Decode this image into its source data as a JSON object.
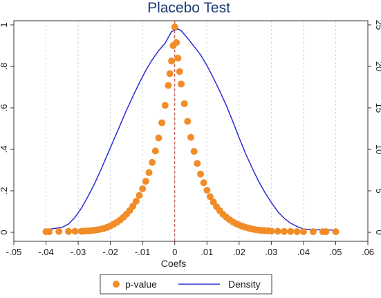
{
  "chart_data": {
    "type": "scatter",
    "title": "Placebo Test",
    "xlabel": "Coefs",
    "xlim": [
      -0.05,
      0.06
    ],
    "x_ticks": [
      -0.05,
      -0.04,
      -0.03,
      -0.02,
      -0.01,
      0,
      0.01,
      0.02,
      0.03,
      0.04,
      0.05,
      0.06
    ],
    "x_tick_labels": [
      "-.05",
      "-.04",
      "-.03",
      "-.02",
      "-.01",
      "0",
      ".01",
      ".02",
      ".03",
      ".04",
      ".05",
      ".06"
    ],
    "y_left": {
      "lim": [
        0,
        1
      ],
      "ticks": [
        0,
        0.2,
        0.4,
        0.6,
        0.8,
        1.0
      ],
      "tick_labels": [
        "0",
        ".2",
        ".4",
        ".6",
        ".8",
        "1"
      ]
    },
    "y_right": {
      "lim": [
        0,
        25
      ],
      "ticks": [
        0,
        5,
        10,
        15,
        20,
        25
      ],
      "tick_labels": [
        "0",
        "5",
        "10",
        "15",
        "20",
        "25"
      ]
    },
    "reference_line": {
      "x": 0,
      "color": "#c0392b",
      "style": "dashed"
    },
    "grid": "vertical dashed",
    "legend": {
      "position": "bottom"
    },
    "series": [
      {
        "name": "p-value",
        "kind": "markers",
        "axis": "left",
        "color": "#f28c28",
        "points": [
          [
            -0.04,
            0.003
          ],
          [
            -0.039,
            0.003
          ],
          [
            -0.036,
            0.004
          ],
          [
            -0.033,
            0.004
          ],
          [
            -0.031,
            0.005
          ],
          [
            -0.029,
            0.005
          ],
          [
            -0.028,
            0.006
          ],
          [
            -0.027,
            0.007
          ],
          [
            -0.026,
            0.008
          ],
          [
            -0.025,
            0.01
          ],
          [
            -0.024,
            0.012
          ],
          [
            -0.023,
            0.015
          ],
          [
            -0.022,
            0.019
          ],
          [
            -0.021,
            0.024
          ],
          [
            -0.02,
            0.031
          ],
          [
            -0.019,
            0.039
          ],
          [
            -0.018,
            0.048
          ],
          [
            -0.017,
            0.059
          ],
          [
            -0.016,
            0.072
          ],
          [
            -0.015,
            0.087
          ],
          [
            -0.014,
            0.105
          ],
          [
            -0.013,
            0.126
          ],
          [
            -0.012,
            0.15
          ],
          [
            -0.011,
            0.178
          ],
          [
            -0.01,
            0.21
          ],
          [
            -0.009,
            0.246
          ],
          [
            -0.008,
            0.288
          ],
          [
            -0.007,
            0.337
          ],
          [
            -0.006,
            0.392
          ],
          [
            -0.005,
            0.455
          ],
          [
            -0.004,
            0.528
          ],
          [
            -0.003,
            0.612
          ],
          [
            -0.002,
            0.708
          ],
          [
            -0.0015,
            0.765
          ],
          [
            -0.001,
            0.826
          ],
          [
            -0.0005,
            0.9
          ],
          [
            0.0,
            0.99
          ],
          [
            0.0005,
            0.915
          ],
          [
            0.001,
            0.84
          ],
          [
            0.0015,
            0.775
          ],
          [
            0.002,
            0.715
          ],
          [
            0.003,
            0.62
          ],
          [
            0.004,
            0.535
          ],
          [
            0.005,
            0.458
          ],
          [
            0.006,
            0.39
          ],
          [
            0.007,
            0.332
          ],
          [
            0.008,
            0.281
          ],
          [
            0.009,
            0.239
          ],
          [
            0.01,
            0.203
          ],
          [
            0.011,
            0.172
          ],
          [
            0.012,
            0.146
          ],
          [
            0.013,
            0.123
          ],
          [
            0.014,
            0.104
          ],
          [
            0.015,
            0.087
          ],
          [
            0.016,
            0.073
          ],
          [
            0.017,
            0.061
          ],
          [
            0.018,
            0.051
          ],
          [
            0.019,
            0.042
          ],
          [
            0.02,
            0.035
          ],
          [
            0.021,
            0.029
          ],
          [
            0.022,
            0.024
          ],
          [
            0.023,
            0.02
          ],
          [
            0.024,
            0.016
          ],
          [
            0.025,
            0.013
          ],
          [
            0.026,
            0.011
          ],
          [
            0.027,
            0.009
          ],
          [
            0.028,
            0.008
          ],
          [
            0.029,
            0.007
          ],
          [
            0.03,
            0.006
          ],
          [
            0.032,
            0.005
          ],
          [
            0.034,
            0.004
          ],
          [
            0.036,
            0.004
          ],
          [
            0.038,
            0.003
          ],
          [
            0.04,
            0.003
          ],
          [
            0.043,
            0.003
          ],
          [
            0.046,
            0.003
          ],
          [
            0.047,
            0.003
          ],
          [
            0.05,
            0.003
          ]
        ]
      },
      {
        "name": "Density",
        "kind": "line",
        "axis": "right",
        "color": "#2b2bd6",
        "points": [
          [
            -0.04,
            0.3
          ],
          [
            -0.035,
            0.6
          ],
          [
            -0.033,
            1.0
          ],
          [
            -0.031,
            1.8
          ],
          [
            -0.029,
            2.9
          ],
          [
            -0.027,
            4.3
          ],
          [
            -0.025,
            5.8
          ],
          [
            -0.023,
            7.5
          ],
          [
            -0.021,
            9.3
          ],
          [
            -0.019,
            11.1
          ],
          [
            -0.017,
            12.9
          ],
          [
            -0.015,
            14.7
          ],
          [
            -0.013,
            16.4
          ],
          [
            -0.011,
            18.0
          ],
          [
            -0.009,
            19.5
          ],
          [
            -0.007,
            20.8
          ],
          [
            -0.005,
            21.9
          ],
          [
            -0.003,
            22.8
          ],
          [
            -0.001,
            24.2
          ],
          [
            0.001,
            24.5
          ],
          [
            0.002,
            24.3
          ],
          [
            0.004,
            23.4
          ],
          [
            0.006,
            22.4
          ],
          [
            0.008,
            21.4
          ],
          [
            0.01,
            20.1
          ],
          [
            0.012,
            18.6
          ],
          [
            0.014,
            17.0
          ],
          [
            0.016,
            15.3
          ],
          [
            0.018,
            13.4
          ],
          [
            0.02,
            11.4
          ],
          [
            0.022,
            9.5
          ],
          [
            0.024,
            7.8
          ],
          [
            0.026,
            6.2
          ],
          [
            0.028,
            4.8
          ],
          [
            0.03,
            3.6
          ],
          [
            0.032,
            2.5
          ],
          [
            0.034,
            1.7
          ],
          [
            0.036,
            1.1
          ],
          [
            0.038,
            0.7
          ],
          [
            0.04,
            0.4
          ],
          [
            0.044,
            0.3
          ],
          [
            0.048,
            0.3
          ],
          [
            0.05,
            0.2
          ]
        ]
      }
    ]
  }
}
